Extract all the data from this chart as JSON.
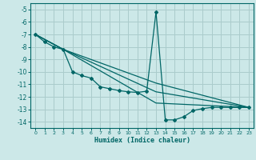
{
  "title": "",
  "xlabel": "Humidex (Indice chaleur)",
  "bg_color": "#cce8e8",
  "grid_color": "#aacccc",
  "line_color": "#006666",
  "xlim": [
    -0.5,
    23.5
  ],
  "ylim": [
    -14.5,
    -4.5
  ],
  "yticks": [
    -5,
    -6,
    -7,
    -8,
    -9,
    -10,
    -11,
    -12,
    -13,
    -14
  ],
  "xticks": [
    0,
    1,
    2,
    3,
    4,
    5,
    6,
    7,
    8,
    9,
    10,
    11,
    12,
    13,
    14,
    15,
    16,
    17,
    18,
    19,
    20,
    21,
    22,
    23
  ],
  "series_main": {
    "x": [
      0,
      1,
      2,
      3,
      4,
      5,
      6,
      7,
      8,
      9,
      10,
      11,
      12,
      13,
      14,
      15,
      16,
      17,
      18,
      19,
      20,
      21,
      22,
      23
    ],
    "y": [
      -7.0,
      -7.6,
      -8.0,
      -8.2,
      -10.0,
      -10.3,
      -10.5,
      -11.2,
      -11.35,
      -11.5,
      -11.6,
      -11.65,
      -11.55,
      -5.2,
      -13.85,
      -13.85,
      -13.6,
      -13.1,
      -12.95,
      -12.85,
      -12.85,
      -12.85,
      -12.85,
      -12.85
    ]
  },
  "trend_lines": [
    {
      "x": [
        0,
        3,
        13,
        23
      ],
      "y": [
        -7.0,
        -8.2,
        -10.9,
        -12.85
      ]
    },
    {
      "x": [
        0,
        3,
        13,
        23
      ],
      "y": [
        -7.0,
        -8.2,
        -11.6,
        -12.85
      ]
    },
    {
      "x": [
        0,
        3,
        13,
        23
      ],
      "y": [
        -7.0,
        -8.2,
        -12.5,
        -12.85
      ]
    }
  ]
}
